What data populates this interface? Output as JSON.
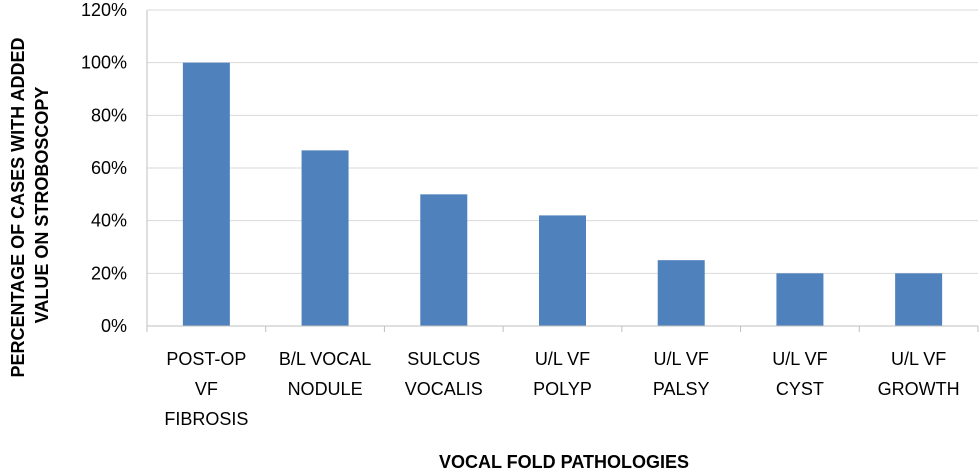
{
  "chart_data": {
    "type": "bar",
    "title": "",
    "xlabel": "VOCAL FOLD PATHOLOGIES",
    "ylabel_lines": [
      "PERCENTAGE OF CASES WITH ADDED",
      "VALUE ON STROBOSCOPY"
    ],
    "categories": [
      [
        "POST-OP",
        "VF",
        "FIBROSIS"
      ],
      [
        "B/L VOCAL",
        "NODULE"
      ],
      [
        "SULCUS",
        "VOCALIS"
      ],
      [
        "U/L VF",
        "POLYP"
      ],
      [
        "U/L VF",
        "PALSY"
      ],
      [
        "U/L VF",
        "CYST"
      ],
      [
        "U/L VF",
        "GROWTH"
      ]
    ],
    "values": [
      100,
      66.7,
      50,
      42,
      25,
      20,
      20
    ],
    "ylim": [
      0,
      120
    ],
    "yticks": [
      "0%",
      "20%",
      "40%",
      "60%",
      "80%",
      "100%",
      "120%"
    ],
    "grid": true,
    "colors": {
      "bar": "#4F81BD",
      "grid": "#D9D9D9",
      "axis": "#BFBFBF"
    }
  }
}
